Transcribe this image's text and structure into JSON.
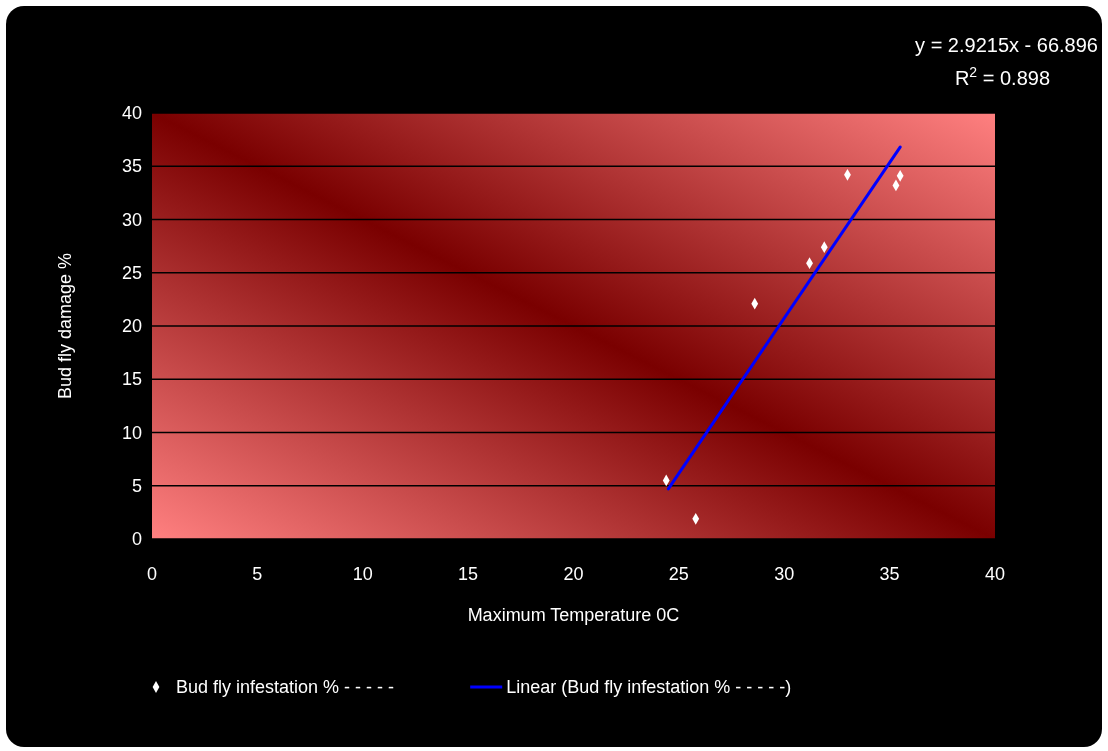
{
  "chart_data": {
    "type": "scatter",
    "xlabel": "Maximum Temperature 0C",
    "ylabel": "Bud fly damage %",
    "xlim": [
      0,
      40
    ],
    "xticks": [
      0,
      5,
      10,
      15,
      20,
      25,
      30,
      35,
      40
    ],
    "ylim": [
      0,
      40
    ],
    "yticks": [
      0,
      5,
      10,
      15,
      20,
      25,
      30,
      35,
      40
    ],
    "grid": "y",
    "legend": "bottom",
    "annotations": [
      "y = 2.9215x - 66.896",
      "R$^{2}$ = 0.898"
    ],
    "series": [
      {
        "name": "Bud fly infestation % - - - - -",
        "marker": "diamond",
        "color": "#ffffff",
        "x": [
          24.4,
          25.8,
          28.6,
          31.2,
          31.9,
          33.0,
          35.3,
          35.5
        ],
        "values": [
          5.5,
          1.9,
          22.1,
          25.9,
          27.4,
          34.2,
          33.2,
          34.1
        ]
      },
      {
        "name": "Linear (Bud fly infestation % - - - - -)",
        "type": "line",
        "marker": "none",
        "color": "#0000ff",
        "x": [
          24.5,
          35.5
        ],
        "values": [
          4.7,
          36.8
        ]
      }
    ]
  }
}
